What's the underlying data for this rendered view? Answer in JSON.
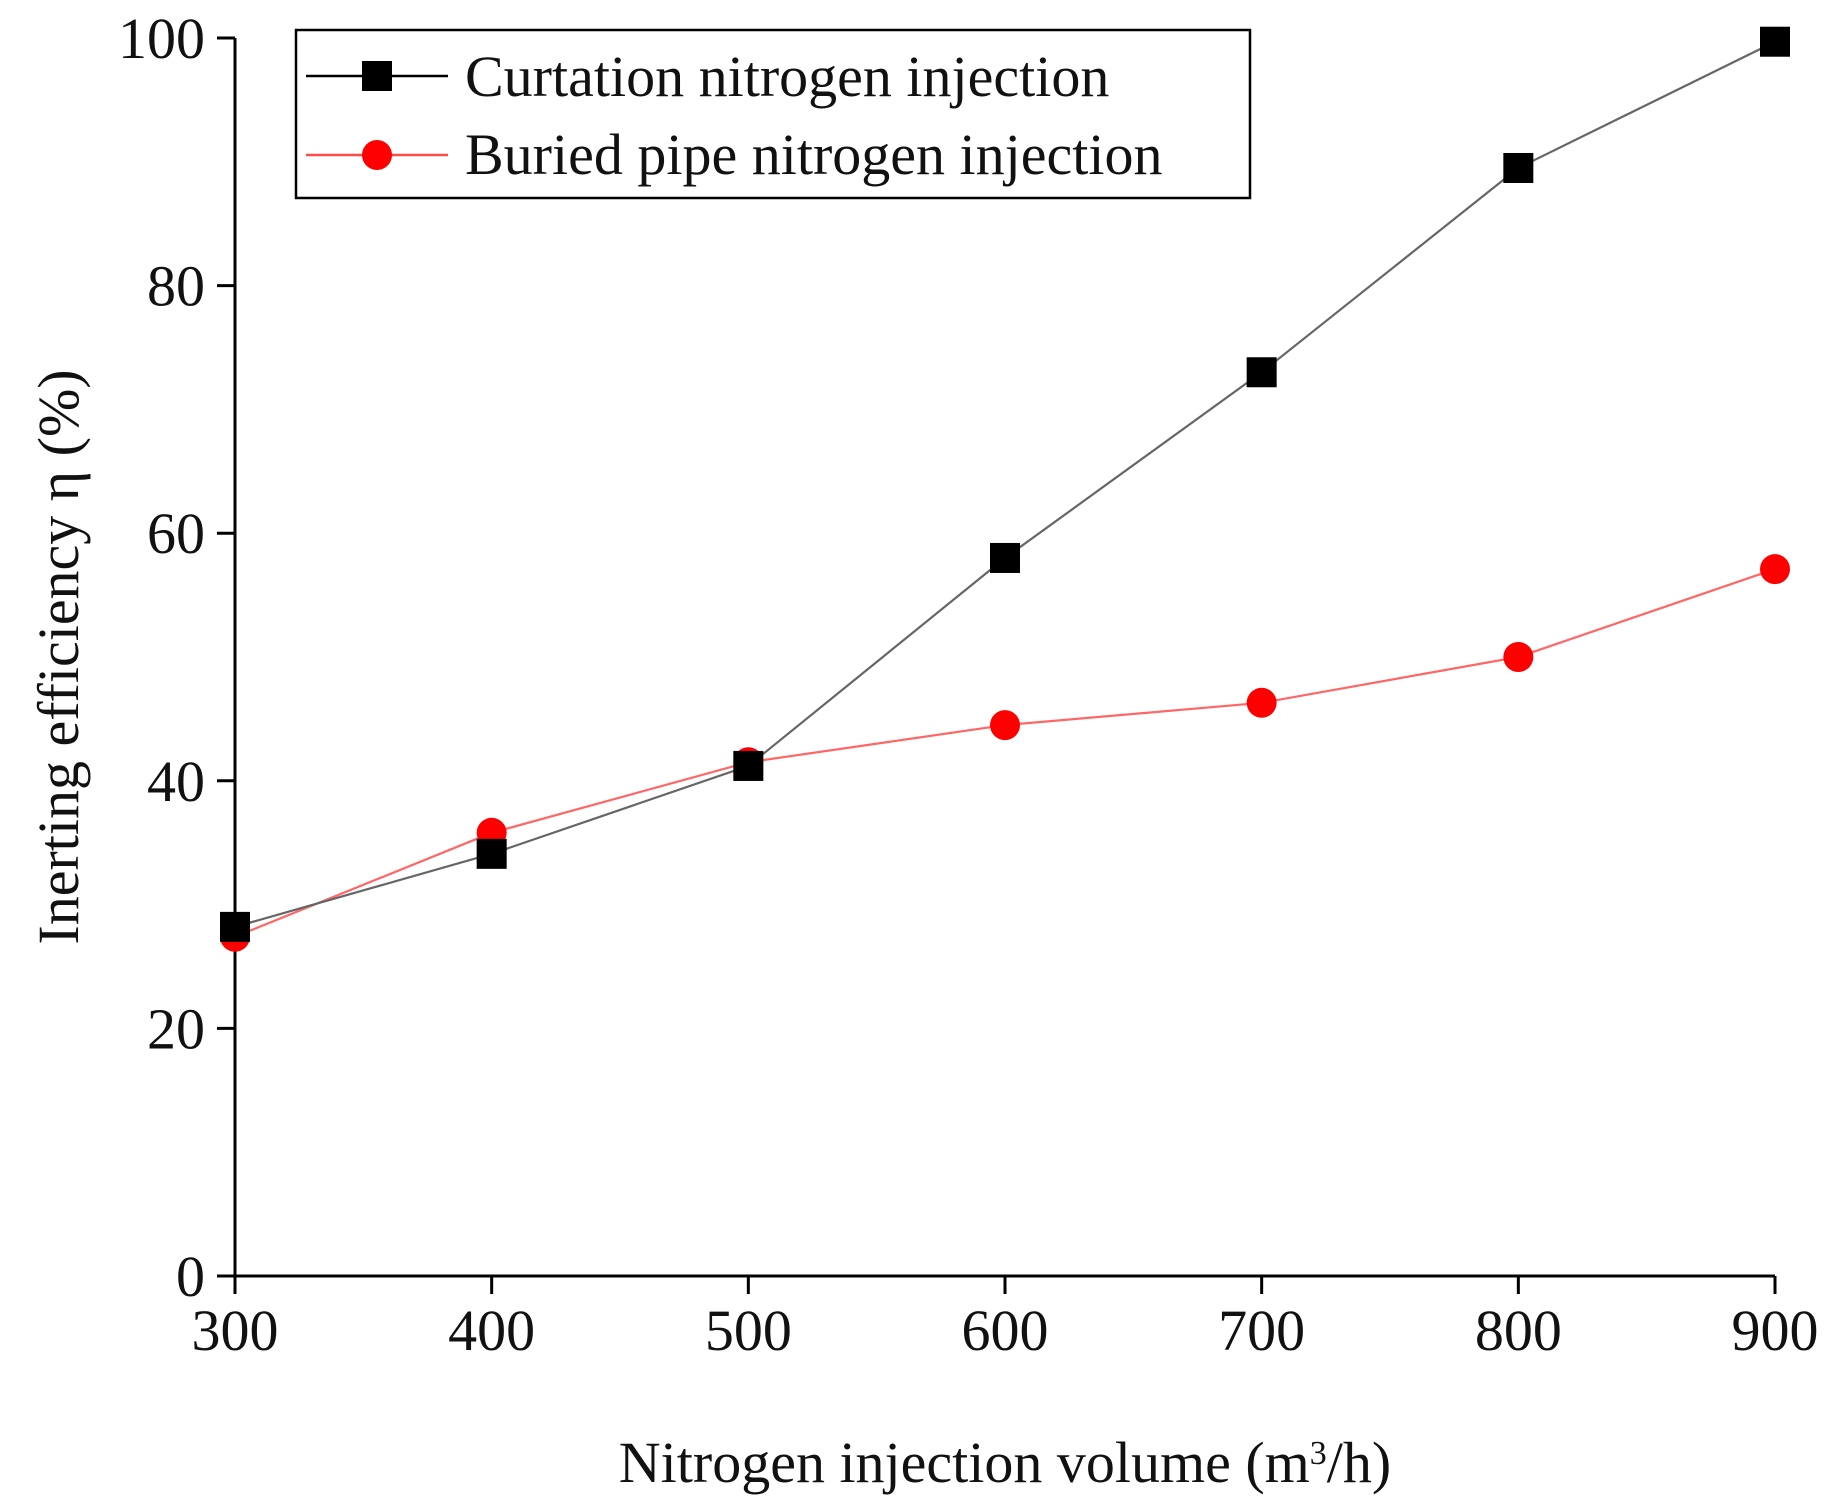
{
  "chart_data": {
    "type": "line",
    "title": "",
    "xlabel": "Nitrogen injection volume (m",
    "xlabel_superscript": "3",
    "xlabel_suffix": "/h)",
    "ylabel": "Inerting efficiency η (%)",
    "xlim": [
      300,
      900
    ],
    "ylim": [
      0,
      100
    ],
    "x_ticks": [
      300,
      400,
      500,
      600,
      700,
      800,
      900
    ],
    "y_ticks": [
      0,
      20,
      40,
      60,
      80,
      100
    ],
    "x_tick_labels": [
      "300",
      "400",
      "500",
      "600",
      "700",
      "800",
      "900"
    ],
    "y_tick_labels": [
      "0",
      "20",
      "40",
      "60",
      "80",
      "100"
    ],
    "grid": false,
    "legend_position": "top-left",
    "x": [
      300,
      400,
      500,
      600,
      700,
      800,
      900
    ],
    "series": [
      {
        "name": "Curtation nitrogen injection",
        "marker": "square",
        "color": "#000000",
        "line_color": "#666666",
        "values": [
          28.2,
          34.1,
          41.2,
          58.0,
          73.0,
          89.5,
          99.7
        ]
      },
      {
        "name": "Buried pipe nitrogen injection",
        "marker": "circle",
        "color": "#ff0000",
        "line_color": "#ff6666",
        "values": [
          27.4,
          35.8,
          41.5,
          44.5,
          46.3,
          50.0,
          57.1
        ]
      }
    ]
  }
}
